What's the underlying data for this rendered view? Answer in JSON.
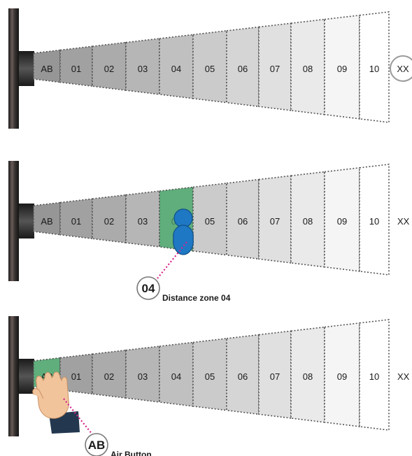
{
  "panels": [
    {
      "zones": [
        "AB",
        "01",
        "02",
        "03",
        "04",
        "05",
        "06",
        "07",
        "08",
        "09",
        "10"
      ],
      "end_label": "XX",
      "end_label_circled": true,
      "highlight_zone": null,
      "callout": null
    },
    {
      "zones": [
        "AB",
        "01",
        "02",
        "03",
        "04",
        "05",
        "06",
        "07",
        "08",
        "09",
        "10"
      ],
      "end_label": "XX",
      "end_label_circled": false,
      "highlight_zone": "04",
      "figure": "person-icon",
      "callout": {
        "badge": "04",
        "text": "Distance zone 04"
      }
    },
    {
      "zones": [
        "AB",
        "01",
        "02",
        "03",
        "04",
        "05",
        "06",
        "07",
        "08",
        "09",
        "10"
      ],
      "end_label": "XX",
      "end_label_circled": false,
      "highlight_zone": "AB",
      "figure": "hand-icon",
      "callout": {
        "badge": "AB",
        "text": "Air Button"
      }
    }
  ],
  "colors": {
    "highlight": "#5fae7c",
    "person": "#1f78c4",
    "callout_line": "#d6238a",
    "dotted_border": "#555555",
    "device": "#2b2b2b"
  }
}
